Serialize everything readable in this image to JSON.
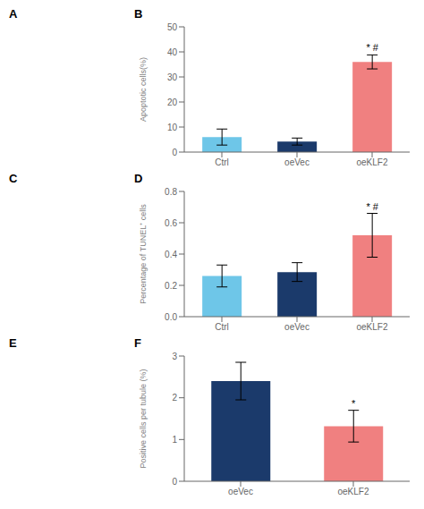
{
  "chart_data": [
    {
      "type": "bar",
      "title": "B",
      "categories": [
        "Ctrl",
        "oeVec",
        "oeKLF2"
      ],
      "values": [
        6.0,
        4.2,
        36.0
      ],
      "errors": [
        3.2,
        1.4,
        2.8
      ],
      "colors": [
        "#6EC6E8",
        "#1B3A6B",
        "#F08080"
      ],
      "ylabel": "Apoptotic cells(%)",
      "ylim": [
        0,
        50
      ],
      "yticks": [
        0,
        10,
        20,
        30,
        40,
        50
      ],
      "annotations": [
        null,
        null,
        "* #"
      ]
    },
    {
      "type": "bar",
      "title": "D",
      "categories": [
        "Ctrl",
        "oeVec",
        "oeKLF2"
      ],
      "values": [
        0.26,
        0.285,
        0.52
      ],
      "errors": [
        0.07,
        0.06,
        0.14
      ],
      "colors": [
        "#6EC6E8",
        "#1B3A6B",
        "#F08080"
      ],
      "ylabel": "Percentage of TUNEL⁺ cells",
      "ylim": [
        0.0,
        0.8
      ],
      "yticks": [
        {
          "value": 0.0,
          "label": "0.0"
        },
        0.2,
        0.4,
        0.6,
        0.8
      ],
      "annotations": [
        null,
        null,
        "* #"
      ]
    },
    {
      "type": "bar",
      "title": "F",
      "categories": [
        "oeVec",
        "oeKLF2"
      ],
      "values": [
        2.4,
        1.32
      ],
      "errors": [
        0.45,
        0.38
      ],
      "colors": [
        "#1B3A6B",
        "#F08080"
      ],
      "ylabel": "Positive cells per tubule (%)",
      "ylim": [
        0,
        3
      ],
      "yticks": [
        0,
        1,
        2,
        3
      ],
      "annotations": [
        null,
        "*"
      ]
    }
  ],
  "annotations": [
    "A",
    "C",
    "E"
  ]
}
